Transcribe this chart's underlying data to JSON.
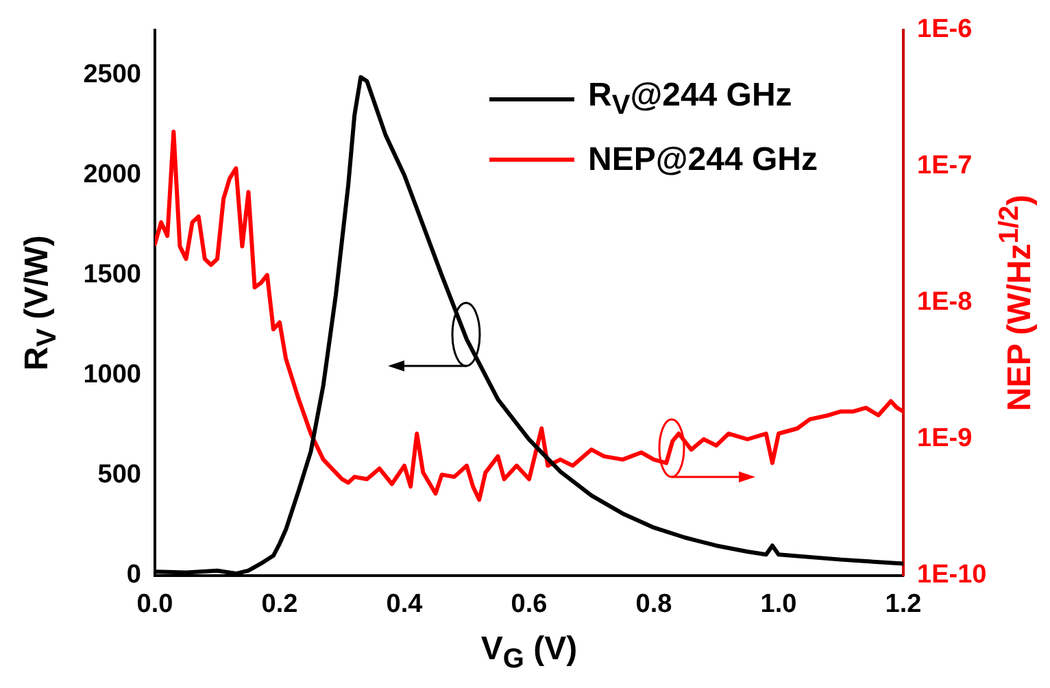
{
  "chart_data": {
    "type": "line",
    "xlabel": "V$_{G}$ (V)",
    "ylabel": "R$_{V}$ (V/W)",
    "y2label": "NEP (W/Hz$^{1/2}$)",
    "xlim": [
      0,
      1.2
    ],
    "xticks": [
      {
        "value": 0,
        "label": "0.0"
      },
      0.2,
      0.4,
      0.6,
      0.8,
      {
        "value": 1,
        "label": "1.0"
      },
      1.2
    ],
    "ylim": [
      0,
      2725
    ],
    "yticks": [
      0,
      500,
      1000,
      1500,
      2000,
      2500
    ],
    "y2lim": [
      1e-10,
      1e-06
    ],
    "y2ticks": [
      {
        "value": 1e-10,
        "label": "1E-10"
      },
      {
        "value": 1e-09,
        "label": "1E-9"
      },
      {
        "value": 1e-08,
        "label": "1E-8"
      },
      {
        "value": 1e-07,
        "label": "1E-7"
      },
      {
        "value": 1e-06,
        "label": "1E-6"
      }
    ],
    "log": "y2",
    "legend": "top right",
    "marker": "none",
    "line_style": "solid",
    "series": [
      {
        "name": "R$_{V}$@244 GHz",
        "color": "#000000",
        "x": [
          0,
          0.05,
          0.1,
          0.13,
          0.15,
          0.17,
          0.19,
          0.2,
          0.21,
          0.23,
          0.25,
          0.27,
          0.29,
          0.31,
          0.32,
          0.33,
          0.34,
          0.35,
          0.37,
          0.4,
          0.43,
          0.46,
          0.5,
          0.55,
          0.6,
          0.65,
          0.7,
          0.75,
          0.8,
          0.85,
          0.9,
          0.95,
          0.98,
          0.99,
          1.0,
          1.1,
          1.2
        ],
        "values": [
          20,
          15,
          25,
          10,
          25,
          60,
          100,
          160,
          230,
          420,
          620,
          950,
          1400,
          1950,
          2300,
          2490,
          2470,
          2380,
          2200,
          2000,
          1750,
          1500,
          1180,
          880,
          680,
          520,
          400,
          310,
          240,
          190,
          150,
          120,
          105,
          150,
          105,
          80,
          60
        ]
      },
      {
        "name": "NEP@244 GHz",
        "color": "#ff0000",
        "axis": "y2",
        "x": [
          0,
          0.01,
          0.02,
          0.03,
          0.04,
          0.05,
          0.06,
          0.07,
          0.08,
          0.09,
          0.1,
          0.11,
          0.12,
          0.13,
          0.14,
          0.15,
          0.16,
          0.17,
          0.18,
          0.19,
          0.2,
          0.21,
          0.23,
          0.25,
          0.27,
          0.29,
          0.3,
          0.31,
          0.32,
          0.34,
          0.36,
          0.38,
          0.4,
          0.41,
          0.42,
          0.43,
          0.45,
          0.46,
          0.48,
          0.5,
          0.51,
          0.52,
          0.53,
          0.55,
          0.56,
          0.58,
          0.6,
          0.62,
          0.63,
          0.65,
          0.67,
          0.7,
          0.72,
          0.75,
          0.78,
          0.8,
          0.82,
          0.83,
          0.84,
          0.86,
          0.88,
          0.9,
          0.92,
          0.95,
          0.98,
          0.99,
          1.0,
          1.03,
          1.05,
          1.08,
          1.1,
          1.12,
          1.14,
          1.16,
          1.18,
          1.19,
          1.2
        ],
        "values": [
          2.7e-08,
          3.9e-08,
          3.1e-08,
          1.8e-07,
          2.6e-08,
          2.1e-08,
          3.9e-08,
          4.3e-08,
          2.1e-08,
          1.9e-08,
          2.1e-08,
          5.8e-08,
          8.2e-08,
          9.7e-08,
          2.6e-08,
          6.5e-08,
          1.3e-08,
          1.4e-08,
          1.6e-08,
          6.4e-09,
          7.2e-09,
          3.9e-09,
          2e-09,
          1.1e-09,
          7.1e-10,
          5.7e-10,
          5.1e-10,
          4.8e-10,
          5.3e-10,
          5.1e-10,
          6.1e-10,
          4.7e-10,
          6.4e-10,
          4.5e-10,
          1.1e-09,
          5.7e-10,
          4e-10,
          5.5e-10,
          5.3e-10,
          6.4e-10,
          4.5e-10,
          3.6e-10,
          5.7e-10,
          7.5e-10,
          5.1e-10,
          6.4e-10,
          5.1e-10,
          1.2e-09,
          6.4e-10,
          7.1e-10,
          6.4e-10,
          8.4e-10,
          7.5e-10,
          7.1e-10,
          8e-10,
          7.1e-10,
          6.7e-10,
          9.7e-10,
          1.1e-09,
          8.4e-10,
          1e-09,
          9e-10,
          1.1e-09,
          1e-09,
          1.1e-09,
          6.7e-10,
          1.1e-09,
          1.2e-09,
          1.4e-09,
          1.5e-09,
          1.6e-09,
          1.6e-09,
          1.7e-09,
          1.5e-09,
          1.9e-09,
          1.7e-09,
          1.6e-09
        ]
      }
    ]
  }
}
